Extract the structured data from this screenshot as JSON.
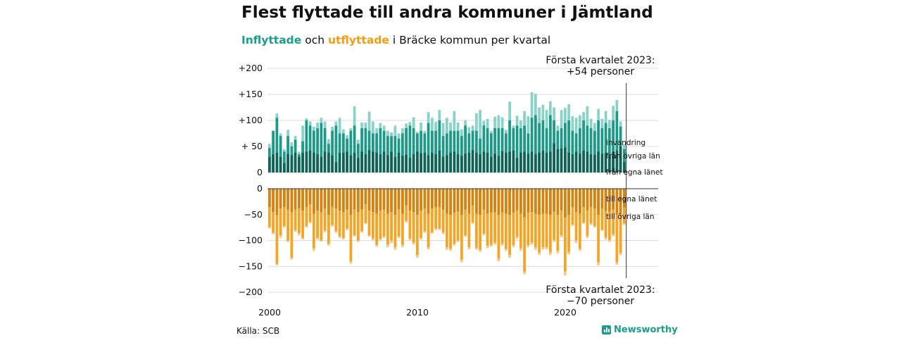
{
  "title": "Flest flyttade till andra kommuner i Jämtland",
  "subtitle": {
    "in_label": "Inflyttade",
    "mid1": " och ",
    "out_label": "utflyttade",
    "rest": " i Bräcke kommun per kvartal"
  },
  "source": "Källa: SCB",
  "brand": "Newsworthy",
  "colors": {
    "inv": "#87d3c7",
    "ovr_in": "#1a9a88",
    "egna_in": "#0e6355",
    "egna_out": "#d48210",
    "ovr_out": "#f5a424",
    "out_extra": "#f8c98a"
  },
  "chart_data": {
    "type": "bar",
    "x_ticks": [
      "2000",
      "2010",
      "2020"
    ],
    "top_axis": {
      "ylim": [
        0,
        200
      ],
      "ticks": [
        "0",
        "+ 50",
        "+100",
        "+150",
        "+200"
      ]
    },
    "bottom_axis": {
      "ylim": [
        -200,
        0
      ],
      "ticks": [
        "0",
        "−50",
        "−100",
        "−150",
        "−200"
      ]
    },
    "annotation_top": [
      "Första kvartalet 2023:",
      "+54 personer"
    ],
    "annotation_bottom": [
      "Första kvartalet 2023:",
      "−70 personer"
    ],
    "series_labels_in": [
      "invandring",
      "från övriga län",
      "från egna länet"
    ],
    "series_labels_out": [
      "till egna länet",
      "till övriga län"
    ],
    "quarters_start": "2000 Q1",
    "inflyttade_totals": [
      55,
      80,
      113,
      75,
      45,
      82,
      58,
      70,
      40,
      90,
      104,
      98,
      88,
      96,
      105,
      98,
      64,
      88,
      98,
      105,
      83,
      72,
      85,
      127,
      63,
      96,
      96,
      117,
      98,
      85,
      95,
      90,
      80,
      77,
      90,
      75,
      85,
      94,
      97,
      106,
      78,
      96,
      80,
      116,
      105,
      97,
      120,
      95,
      105,
      96,
      118,
      96,
      83,
      100,
      87,
      90,
      114,
      120,
      99,
      103,
      80,
      107,
      110,
      106,
      82,
      136,
      90,
      109,
      100,
      118,
      108,
      154,
      151,
      125,
      130,
      120,
      137,
      125,
      90,
      120,
      124,
      131,
      108,
      105,
      110,
      116,
      127,
      103,
      95,
      122,
      103,
      118,
      101,
      128,
      139,
      98,
      54
    ],
    "inflyttade_egna": [
      30,
      35,
      38,
      30,
      18,
      35,
      33,
      38,
      30,
      38,
      40,
      42,
      38,
      35,
      30,
      40,
      38,
      33,
      20,
      38,
      38,
      40,
      33,
      38,
      28,
      40,
      35,
      43,
      40,
      38,
      35,
      40,
      33,
      40,
      30,
      38,
      32,
      34,
      28,
      35,
      40,
      37,
      38,
      33,
      38,
      35,
      42,
      30,
      33,
      38,
      40,
      35,
      32,
      36,
      38,
      43,
      38,
      35,
      40,
      38,
      30,
      36,
      32,
      41,
      38,
      40,
      42,
      28,
      38,
      40,
      36,
      40,
      35,
      38,
      42,
      38,
      40,
      56,
      45,
      46,
      48,
      38,
      35,
      40,
      36,
      42,
      40,
      35,
      34,
      40,
      36,
      38,
      33,
      40,
      42,
      50,
      20
    ],
    "inflyttade_ovriga": [
      47,
      80,
      105,
      70,
      40,
      70,
      50,
      63,
      35,
      60,
      100,
      90,
      80,
      85,
      95,
      85,
      55,
      80,
      90,
      75,
      75,
      65,
      80,
      90,
      55,
      85,
      85,
      80,
      75,
      75,
      85,
      80,
      70,
      70,
      70,
      65,
      75,
      85,
      90,
      85,
      75,
      80,
      75,
      95,
      80,
      80,
      100,
      70,
      75,
      80,
      80,
      80,
      70,
      90,
      75,
      80,
      80,
      65,
      90,
      85,
      75,
      85,
      85,
      85,
      75,
      100,
      85,
      90,
      85,
      90,
      75,
      105,
      110,
      95,
      100,
      85,
      110,
      100,
      80,
      85,
      95,
      100,
      80,
      75,
      85,
      100,
      90,
      85,
      80,
      100,
      85,
      95,
      85,
      100,
      118,
      88,
      45
    ],
    "utflyttade_totals": [
      77,
      88,
      148,
      95,
      75,
      103,
      137,
      83,
      90,
      98,
      75,
      67,
      120,
      98,
      102,
      84,
      110,
      73,
      85,
      95,
      98,
      80,
      145,
      92,
      103,
      85,
      68,
      93,
      100,
      112,
      100,
      95,
      113,
      105,
      118,
      95,
      113,
      65,
      100,
      108,
      133,
      98,
      85,
      117,
      87,
      80,
      80,
      88,
      118,
      120,
      110,
      103,
      142,
      93,
      117,
      68,
      118,
      122,
      90,
      115,
      112,
      108,
      140,
      110,
      120,
      133,
      113,
      97,
      120,
      165,
      113,
      108,
      118,
      128,
      118,
      117,
      128,
      103,
      125,
      94,
      168,
      127,
      72,
      105,
      120,
      68,
      95,
      70,
      75,
      148,
      82,
      98,
      103,
      92,
      147,
      128,
      70
    ],
    "utflyttade_egna": [
      35,
      45,
      50,
      38,
      35,
      40,
      45,
      40,
      38,
      42,
      35,
      30,
      48,
      42,
      45,
      38,
      50,
      35,
      38,
      42,
      45,
      40,
      50,
      40,
      45,
      40,
      30,
      42,
      45,
      48,
      42,
      40,
      48,
      45,
      50,
      40,
      48,
      32,
      42,
      45,
      50,
      42,
      38,
      48,
      38,
      35,
      35,
      40,
      48,
      50,
      46,
      44,
      50,
      40,
      48,
      32,
      48,
      50,
      40,
      48,
      46,
      45,
      50,
      46,
      48,
      50,
      46,
      42,
      48,
      55,
      46,
      45,
      48,
      50,
      48,
      48,
      50,
      44,
      50,
      42,
      55,
      50,
      35,
      45,
      48,
      35,
      42,
      35,
      38,
      50,
      38,
      42,
      44,
      40,
      50,
      48,
      36
    ],
    "utflyttade_ovriga": [
      74,
      85,
      145,
      90,
      72,
      100,
      133,
      80,
      86,
      95,
      72,
      64,
      115,
      95,
      100,
      81,
      106,
      70,
      82,
      92,
      95,
      77,
      140,
      90,
      100,
      82,
      66,
      90,
      96,
      108,
      97,
      92,
      108,
      100,
      113,
      92,
      108,
      62,
      96,
      104,
      128,
      95,
      82,
      113,
      84,
      77,
      77,
      84,
      113,
      116,
      106,
      100,
      137,
      90,
      113,
      65,
      114,
      118,
      87,
      110,
      108,
      104,
      135,
      106,
      116,
      128,
      109,
      93,
      115,
      160,
      109,
      104,
      113,
      123,
      113,
      113,
      123,
      99,
      120,
      90,
      160,
      122,
      69,
      100,
      116,
      65,
      91,
      67,
      72,
      142,
      79,
      94,
      99,
      88,
      142,
      124,
      67
    ]
  }
}
